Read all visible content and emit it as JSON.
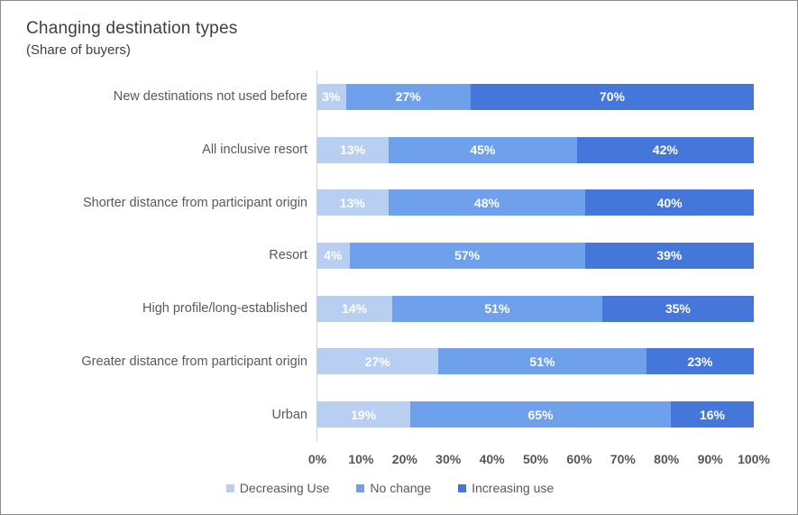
{
  "title": "Changing destination types",
  "subtitle": "(Share of buyers)",
  "colors": {
    "decreasing_use": "#B8CFF1",
    "no_change": "#6FA0EC",
    "increasing_use": "#4577DB",
    "axis_line": "#d2d2d2",
    "text_gray": "#595959"
  },
  "chart_data": {
    "type": "bar",
    "orientation": "horizontal",
    "stacked": true,
    "percent_stacked": true,
    "title": "Changing destination types",
    "subtitle": "(Share of buyers)",
    "categories": [
      "New destinations not used before",
      "All inclusive resort",
      "Shorter distance from participant origin",
      "Resort",
      "High profile/long-established",
      "Greater distance from participant origin",
      "Urban"
    ],
    "series": [
      {
        "name": "Decreasing Use",
        "color": "#B8CFF1",
        "values": [
          3,
          13,
          13,
          4,
          14,
          27,
          19
        ]
      },
      {
        "name": "No change",
        "color": "#6FA0EC",
        "values": [
          27,
          45,
          48,
          57,
          51,
          51,
          65
        ]
      },
      {
        "name": "Increasing use",
        "color": "#4577DB",
        "values": [
          70,
          42,
          40,
          39,
          35,
          23,
          16
        ]
      }
    ],
    "value_label_suffix": "%",
    "x_ticks": [
      "0%",
      "10%",
      "20%",
      "30%",
      "40%",
      "50%",
      "60%",
      "70%",
      "80%",
      "90%",
      "100%"
    ],
    "xlim": [
      0,
      100
    ],
    "grid": false,
    "legend_position": "bottom"
  }
}
